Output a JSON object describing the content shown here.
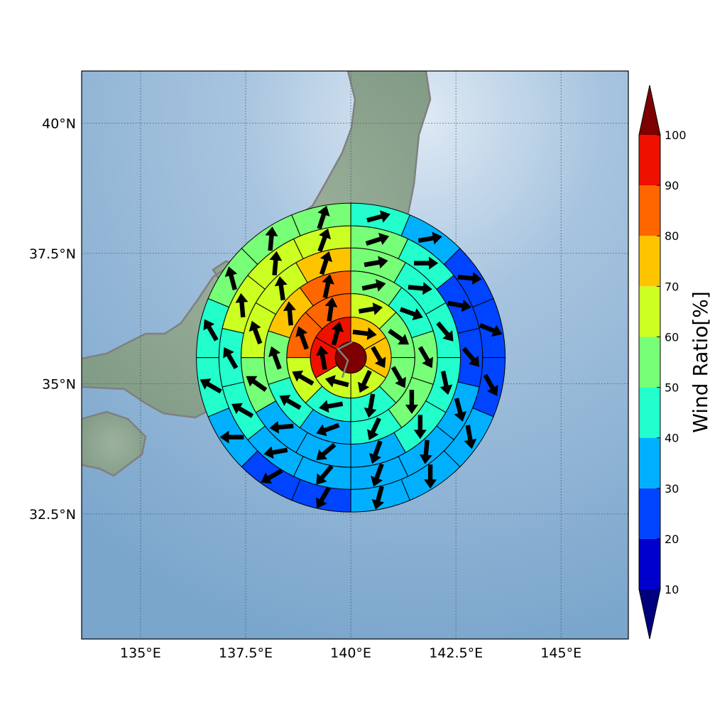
{
  "map": {
    "lon_range": [
      133.6,
      146.6
    ],
    "lat_range": [
      30.1,
      41.0
    ],
    "center": {
      "lon": 140.0,
      "lat": 35.5
    },
    "lon_ticks": [
      {
        "value": 135.0,
        "label": "135°E"
      },
      {
        "value": 137.5,
        "label": "137.5°E"
      },
      {
        "value": 140.0,
        "label": "140°E"
      },
      {
        "value": 142.5,
        "label": "142.5°E"
      },
      {
        "value": 145.0,
        "label": "145°E"
      }
    ],
    "lat_ticks": [
      {
        "value": 40.0,
        "label": "40°N"
      },
      {
        "value": 37.5,
        "label": "37.5°N"
      },
      {
        "value": 35.0,
        "label": "35°N"
      },
      {
        "value": 32.5,
        "label": "32.5°N"
      }
    ],
    "grid": true,
    "background": "shaded relief with blue ocean",
    "coastline_color": "#808080",
    "center_color": "#7f0000",
    "center_ratio": 100,
    "rings": [
      {
        "inner_deg": 0.33,
        "outer_deg": 0.86,
        "sectors": 6,
        "ratio": [
          70,
          70,
          60,
          60,
          90,
          90
        ],
        "dir": [
          97,
          150,
          205,
          285,
          350,
          15
        ]
      },
      {
        "inner_deg": 0.86,
        "outer_deg": 1.36,
        "sectors": 8,
        "ratio": [
          60,
          50,
          50,
          40,
          40,
          60,
          80,
          80
        ],
        "dir": [
          80,
          125,
          150,
          190,
          260,
          300,
          340,
          8
        ]
      },
      {
        "inner_deg": 1.36,
        "outer_deg": 1.84,
        "sectors": 10,
        "ratio": [
          50,
          40,
          50,
          50,
          40,
          30,
          40,
          50,
          70,
          80
        ],
        "dir": [
          78,
          110,
          150,
          180,
          205,
          250,
          300,
          340,
          355,
          12
        ]
      },
      {
        "inner_deg": 1.84,
        "outer_deg": 2.33,
        "sectors": 12,
        "ratio": [
          50,
          40,
          40,
          40,
          40,
          30,
          30,
          30,
          50,
          60,
          60,
          70
        ],
        "dir": [
          80,
          95,
          140,
          168,
          180,
          200,
          230,
          265,
          305,
          340,
          352,
          18
        ]
      },
      {
        "inner_deg": 2.33,
        "outer_deg": 2.8,
        "sectors": 14,
        "ratio": [
          50,
          40,
          20,
          20,
          30,
          30,
          30,
          30,
          30,
          40,
          40,
          60,
          60,
          60
        ],
        "dir": [
          72,
          90,
          100,
          140,
          165,
          185,
          200,
          220,
          260,
          300,
          330,
          355,
          5,
          20
        ]
      },
      {
        "inner_deg": 2.8,
        "outer_deg": 3.28,
        "sectors": 16,
        "ratio": [
          40,
          30,
          20,
          20,
          20,
          30,
          30,
          30,
          20,
          20,
          30,
          40,
          40,
          50,
          50,
          50
        ],
        "dir": [
          75,
          80,
          95,
          112,
          150,
          170,
          180,
          195,
          210,
          240,
          270,
          300,
          330,
          345,
          5,
          18
        ]
      }
    ]
  },
  "colorbar": {
    "label": "Wind Ratio[%]",
    "bounds": [
      10,
      20,
      30,
      40,
      50,
      60,
      70,
      80,
      90,
      100
    ],
    "tick_labels": [
      "10",
      "20",
      "30",
      "40",
      "50",
      "60",
      "70",
      "80",
      "90",
      "100"
    ],
    "colors": [
      "#0000cc",
      "#0044ff",
      "#00b0ff",
      "#22ffcc",
      "#77ff77",
      "#ccff22",
      "#ffc400",
      "#ff6600",
      "#ee1100"
    ],
    "under_color": "#00007f",
    "over_color": "#7f0000"
  }
}
